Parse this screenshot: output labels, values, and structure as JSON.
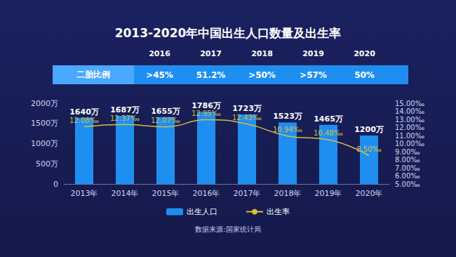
{
  "chart_data": {
    "type": "bar",
    "title": "2013-2020年中国出生人口数量及出生率",
    "categories": [
      "2013年",
      "2014年",
      "2015年",
      "2016年",
      "2017年",
      "2018年",
      "2019年",
      "2020年"
    ],
    "series": [
      {
        "name": "出生人口",
        "type": "bar",
        "color": "#1e8ff0",
        "values": [
          1640,
          1687,
          1655,
          1786,
          1723,
          1523,
          1465,
          1200
        ],
        "value_labels": [
          "1640万",
          "1687万",
          "1655万",
          "1786万",
          "1723万",
          "1523万",
          "1465万",
          "1200万"
        ]
      },
      {
        "name": "出生率",
        "type": "line",
        "axis": "y2",
        "color": "#d9bd3c",
        "values": [
          12.08,
          12.37,
          12.07,
          12.95,
          12.43,
          10.94,
          10.48,
          8.5
        ],
        "value_labels": [
          "12.08‰",
          "12.37‰",
          "12.07‰",
          "12.95‰",
          "12.43‰",
          "10.94‰",
          "10.48‰",
          "8.50‰"
        ]
      }
    ],
    "ylim": [
      0,
      2000
    ],
    "yticks": [
      0,
      {
        "value": 500,
        "label": "500万"
      },
      {
        "value": 1000,
        "label": "1000万"
      },
      {
        "value": 1500,
        "label": "1500万"
      },
      {
        "value": 2000,
        "label": "2000万"
      }
    ],
    "y2lim": [
      5,
      15
    ],
    "y2ticks": [
      {
        "value": 5,
        "label": "5.00‰"
      },
      {
        "value": 6,
        "label": "6.00‰"
      },
      {
        "value": 7,
        "label": "7.00‰"
      },
      {
        "value": 8,
        "label": "8.00‰"
      },
      {
        "value": 9,
        "label": "9.00‰"
      },
      {
        "value": 10,
        "label": "10.00‰"
      },
      {
        "value": 11,
        "label": "11.00‰"
      },
      {
        "value": 12,
        "label": "12.00‰"
      },
      {
        "value": 13,
        "label": "13.00‰"
      },
      {
        "value": 14,
        "label": "14.00‰"
      },
      {
        "value": 15,
        "label": "15.00‰"
      }
    ],
    "data_labels": true,
    "legend": "bottom",
    "grid": false,
    "second_child_ratio": {
      "label": "二胎比例",
      "years": [
        "2016",
        "2017",
        "2018",
        "2019",
        "2020"
      ],
      "values": [
        ">45%",
        "51.2%",
        ">50%",
        ">57%",
        "50%"
      ]
    },
    "source": "数据来源:国家统计局"
  }
}
